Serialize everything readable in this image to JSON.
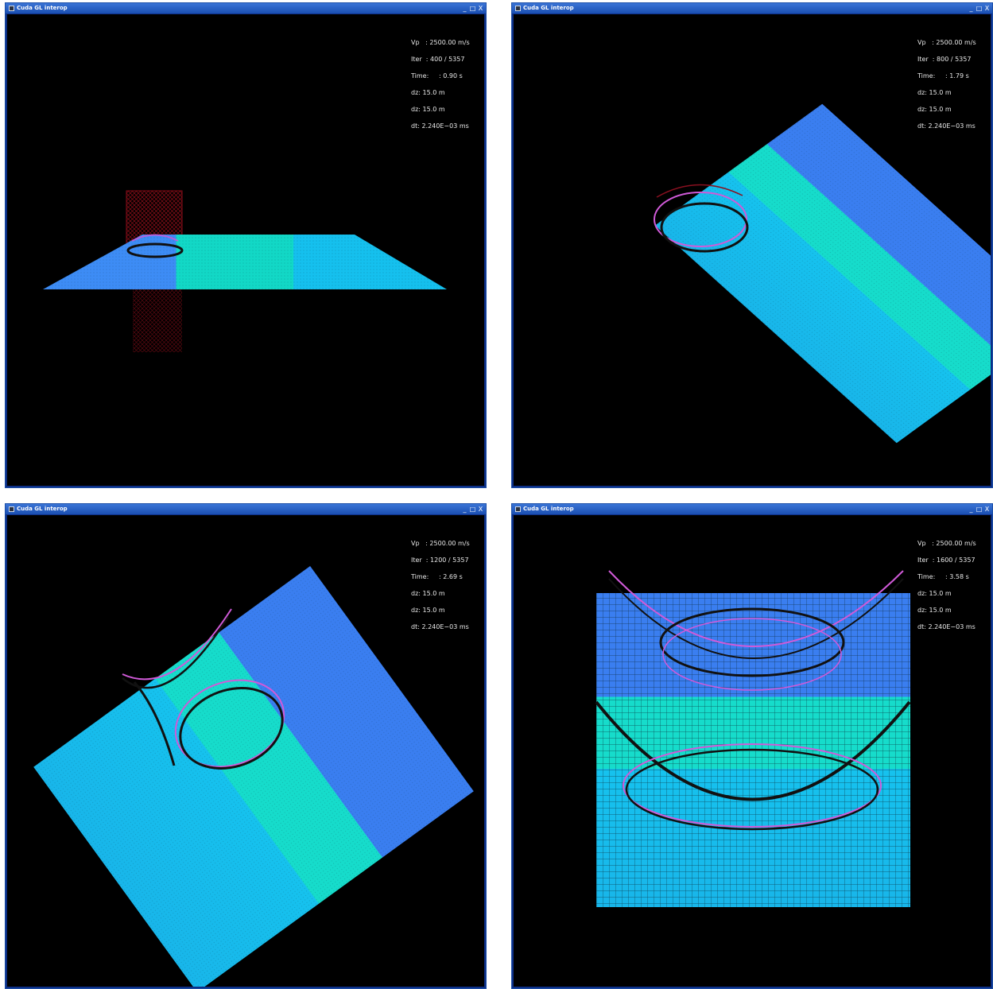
{
  "window_title": "Cuda GL interop",
  "title_buttons": {
    "minimize": "_",
    "maximize": "□",
    "close": "X"
  },
  "icons": {
    "app": "app-icon",
    "minimize": "minimize-icon",
    "maximize": "maximize-icon",
    "close": "close-icon"
  },
  "colors": {
    "titlebar": "#1a4fb2",
    "plane_blue": "#3a8ef5",
    "plane_teal": "#0fd6c4",
    "plane_cyan": "#14c0ee",
    "wavefront_magenta": "#e040d0",
    "wavefront_red": "#c01020"
  },
  "windows": [
    {
      "hud": {
        "vp": "Vp   : 2500.00 m/s",
        "iter": "Iter  : 400 / 5357",
        "time": "Time:     : 0.90 s",
        "dz1": "dz: 15.0 m",
        "dz2": "dz: 15.0 m",
        "dt": "dt: 2.240E−03 ms"
      }
    },
    {
      "hud": {
        "vp": "Vp   : 2500.00 m/s",
        "iter": "Iter  : 800 / 5357",
        "time": "Time:     : 1.79 s",
        "dz1": "dz: 15.0 m",
        "dz2": "dz: 15.0 m",
        "dt": "dt: 2.240E−03 ms"
      }
    },
    {
      "hud": {
        "vp": "Vp   : 2500.00 m/s",
        "iter": "Iter  : 1200 / 5357",
        "time": "Time:     : 2.69 s",
        "dz1": "dz: 15.0 m",
        "dz2": "dz: 15.0 m",
        "dt": "dt: 2.240E−03 ms"
      }
    },
    {
      "hud": {
        "vp": "Vp   : 2500.00 m/s",
        "iter": "Iter  : 1600 / 5357",
        "time": "Time:     : 3.58 s",
        "dz1": "dz: 15.0 m",
        "dz2": "dz: 15.0 m",
        "dt": "dt: 2.240E−03 ms"
      }
    }
  ]
}
